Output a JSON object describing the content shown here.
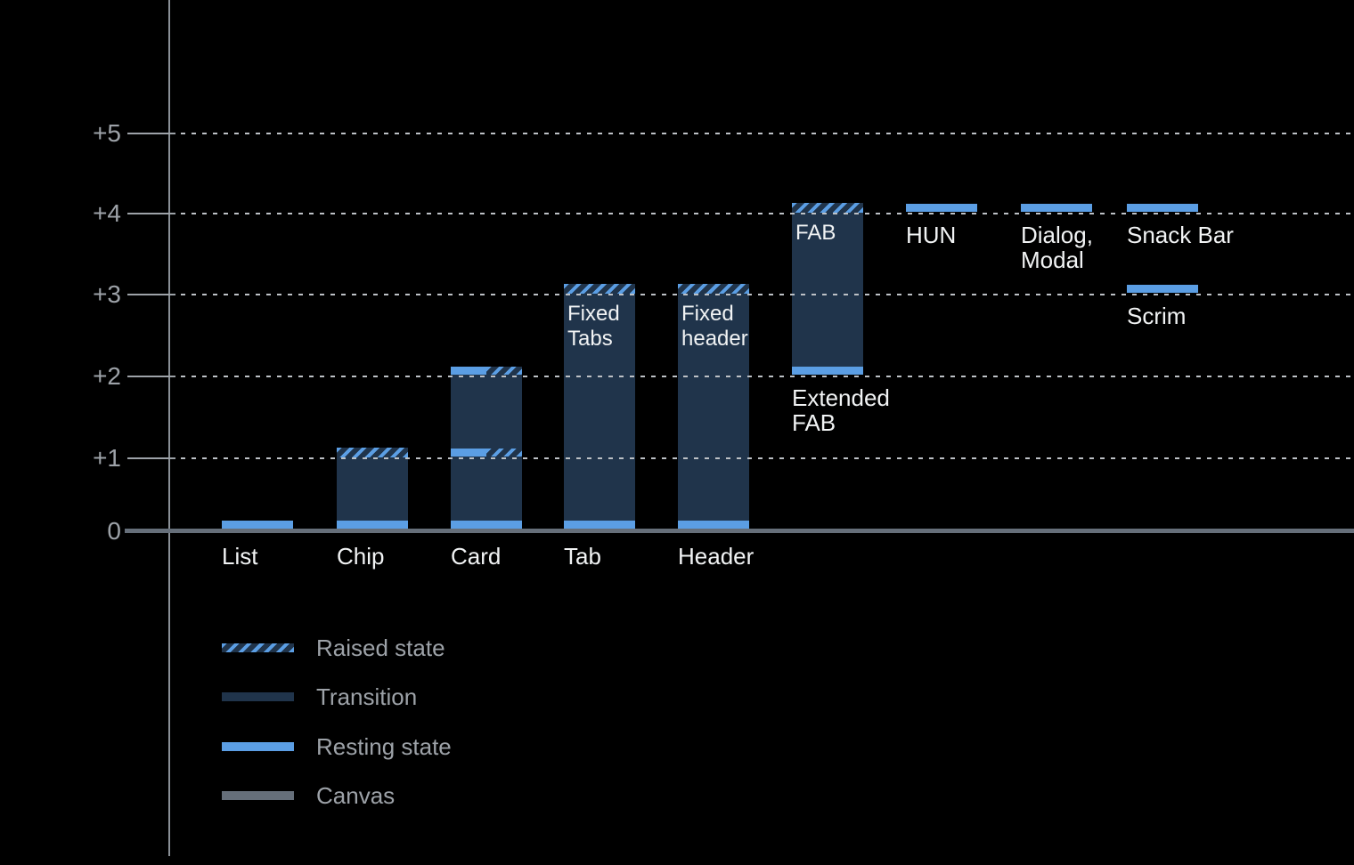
{
  "chart_data": {
    "type": "bar",
    "title": "",
    "xlabel": "",
    "ylabel": "",
    "ylim": [
      0,
      5
    ],
    "grid": "dotted horizontal lines at +1 through +5",
    "legend_position": "bottom-left",
    "y_axis": {
      "ticks": [
        {
          "label": "+5",
          "value": 5
        },
        {
          "label": "+4",
          "value": 4
        },
        {
          "label": "+3",
          "value": 3
        },
        {
          "label": "+2",
          "value": 2
        },
        {
          "label": "+1",
          "value": 1
        },
        {
          "label": "0",
          "value": 0
        }
      ]
    },
    "bars": [
      {
        "id": "list",
        "label": "List",
        "label_lines": [
          "List"
        ],
        "label_pos": "axis",
        "resting": [
          0
        ],
        "transition": null,
        "raised": null
      },
      {
        "id": "chip",
        "label": "Chip",
        "label_lines": [
          "Chip"
        ],
        "label_pos": "axis",
        "resting": [
          0
        ],
        "transition": [
          0,
          1
        ],
        "raised": [
          1
        ]
      },
      {
        "id": "card",
        "label": "Card",
        "label_lines": [
          "Card"
        ],
        "label_pos": "axis",
        "resting": [
          0,
          1,
          2
        ],
        "transition": [
          0,
          2
        ],
        "raised": [
          1,
          2
        ]
      },
      {
        "id": "tab",
        "label": "Tab",
        "label_lines": [
          "Tab"
        ],
        "label_pos": "axis",
        "in_bar_label": "Fixed Tabs",
        "in_bar_label_lines": [
          "Fixed",
          "Tabs"
        ],
        "resting": [
          0
        ],
        "transition": [
          0,
          3
        ],
        "raised": [
          3
        ]
      },
      {
        "id": "header",
        "label": "Header",
        "label_lines": [
          "Header"
        ],
        "label_pos": "axis",
        "in_bar_label": "Fixed header",
        "in_bar_label_lines": [
          "Fixed",
          "header"
        ],
        "resting": [
          0
        ],
        "transition": [
          0,
          3
        ],
        "raised": [
          3
        ]
      },
      {
        "id": "extended-fab",
        "label": "Extended FAB",
        "label_lines": [
          "Extended",
          "FAB"
        ],
        "label_pos": "below",
        "in_bar_label": "FAB",
        "in_bar_label_lines": [
          "FAB"
        ],
        "resting": [
          2
        ],
        "transition": [
          2,
          4
        ],
        "raised": [
          4
        ]
      },
      {
        "id": "hun",
        "label": "HUN",
        "label_lines": [
          "HUN"
        ],
        "label_pos": "below",
        "resting": [
          4
        ],
        "transition": null,
        "raised": null
      },
      {
        "id": "dialog-modal",
        "label": "Dialog, Modal",
        "label_lines": [
          "Dialog,",
          "Modal"
        ],
        "label_pos": "below",
        "resting": [
          4
        ],
        "transition": null,
        "raised": null
      },
      {
        "id": "snack-bar",
        "label": "Snack Bar",
        "label_lines": [
          "Snack Bar"
        ],
        "label_pos": "below",
        "resting": [
          4
        ],
        "transition": null,
        "raised": null
      },
      {
        "id": "scrim",
        "label": "Scrim",
        "label_lines": [
          "Scrim"
        ],
        "label_pos": "below",
        "resting": [
          3
        ],
        "transition": null,
        "raised": null
      }
    ],
    "legend_items": [
      {
        "type": "raised",
        "label": "Raised state"
      },
      {
        "type": "transition",
        "label": "Transition"
      },
      {
        "type": "resting",
        "label": "Resting state"
      },
      {
        "type": "canvas",
        "label": "Canvas"
      }
    ],
    "colors": {
      "background": "#000000",
      "resting_blue": "#5B9EE4",
      "transition_navy": "#20344B",
      "canvas_gray": "#666F7A",
      "text_white": "#F1F3F4",
      "text_muted": "#9DA2A8",
      "gridline_dash": "#BDC1C6",
      "axis_line": "#8A9097"
    }
  }
}
